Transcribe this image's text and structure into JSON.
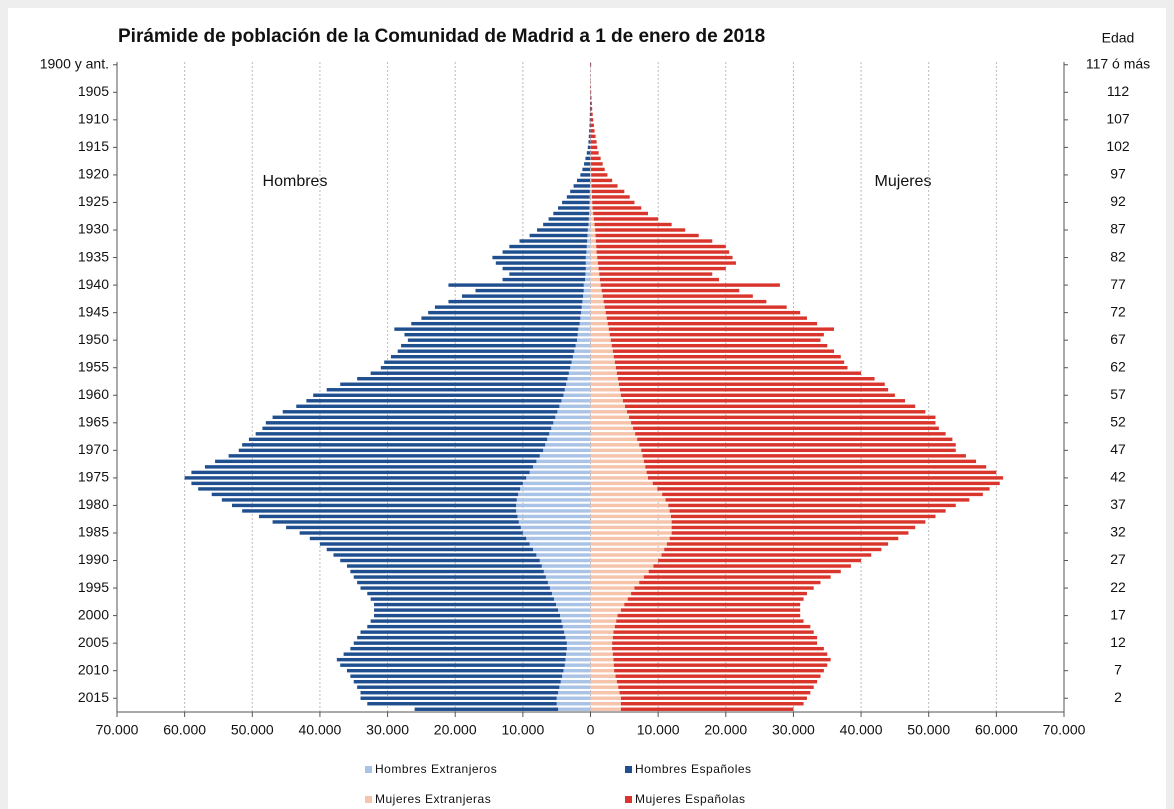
{
  "chart_data": {
    "type": "population_pyramid",
    "title": "Pirámide de población de la Comunidad de Madrid a 1 de enero de 2018",
    "right_axis_title": "Edad",
    "annotations": [
      "Hombres",
      "Mujeres"
    ],
    "categories": [
      "1900 y ant.",
      null,
      null,
      null,
      null,
      "1905",
      null,
      null,
      null,
      null,
      "1910",
      null,
      null,
      null,
      null,
      "1915",
      null,
      null,
      null,
      null,
      "1920",
      null,
      null,
      null,
      null,
      "1925",
      null,
      null,
      null,
      null,
      "1930",
      null,
      null,
      null,
      null,
      "1935",
      null,
      null,
      null,
      null,
      "1940",
      null,
      null,
      null,
      null,
      "1945",
      null,
      null,
      null,
      null,
      "1950",
      null,
      null,
      null,
      null,
      "1955",
      null,
      null,
      null,
      null,
      "1960",
      null,
      null,
      null,
      null,
      "1965",
      null,
      null,
      null,
      null,
      "1970",
      null,
      null,
      null,
      null,
      "1975",
      null,
      null,
      null,
      null,
      "1980",
      null,
      null,
      null,
      null,
      "1985",
      null,
      null,
      null,
      null,
      "1990",
      null,
      null,
      null,
      null,
      "1995",
      null,
      null,
      null,
      null,
      "2000",
      null,
      null,
      null,
      null,
      "2005",
      null,
      null,
      null,
      null,
      "2010",
      null,
      null,
      null,
      null,
      "2015",
      null,
      null
    ],
    "age_labels": [
      "117 ó más",
      null,
      null,
      null,
      null,
      "112",
      null,
      null,
      null,
      null,
      "107",
      null,
      null,
      null,
      null,
      "102",
      null,
      null,
      null,
      null,
      "97",
      null,
      null,
      null,
      null,
      "92",
      null,
      null,
      null,
      null,
      "87",
      null,
      null,
      null,
      null,
      "82",
      null,
      null,
      null,
      null,
      "77",
      null,
      null,
      null,
      null,
      "72",
      null,
      null,
      null,
      null,
      "67",
      null,
      null,
      null,
      null,
      "62",
      null,
      null,
      null,
      null,
      "57",
      null,
      null,
      null,
      null,
      "52",
      null,
      null,
      null,
      null,
      "47",
      null,
      null,
      null,
      null,
      "42",
      null,
      null,
      null,
      null,
      "37",
      null,
      null,
      null,
      null,
      "32",
      null,
      null,
      null,
      null,
      "27",
      null,
      null,
      null,
      null,
      "22",
      null,
      null,
      null,
      null,
      "17",
      null,
      null,
      null,
      null,
      "12",
      null,
      null,
      null,
      null,
      "7",
      null,
      null,
      null,
      null,
      "2",
      null,
      null
    ],
    "xlim": [
      -70000,
      70000
    ],
    "xticks": [
      {
        "value": -70000,
        "label": "70.000"
      },
      {
        "value": -60000,
        "label": "60.000"
      },
      {
        "value": -50000,
        "label": "50.000"
      },
      {
        "value": -40000,
        "label": "40.000"
      },
      {
        "value": -30000,
        "label": "30.000"
      },
      {
        "value": -20000,
        "label": "20.000"
      },
      {
        "value": -10000,
        "label": "10.000"
      },
      0,
      {
        "value": 10000,
        "label": "10.000"
      },
      {
        "value": 20000,
        "label": "20.000"
      },
      {
        "value": 30000,
        "label": "30.000"
      },
      {
        "value": 40000,
        "label": "40.000"
      },
      {
        "value": 50000,
        "label": "50.000"
      },
      {
        "value": 60000,
        "label": "60.000"
      },
      {
        "value": 70000,
        "label": "70.000"
      }
    ],
    "grid": true,
    "series": [
      {
        "name": "Hombres Extranjeros",
        "color": "#a9c3e6",
        "side": "left",
        "values": [
          0,
          0,
          0,
          0,
          0,
          0,
          0,
          0,
          0,
          0,
          10,
          10,
          10,
          20,
          20,
          20,
          30,
          30,
          40,
          50,
          60,
          70,
          80,
          100,
          120,
          140,
          160,
          200,
          250,
          300,
          400,
          450,
          500,
          550,
          600,
          700,
          700,
          700,
          750,
          800,
          1000,
          1000,
          1100,
          1200,
          1300,
          1400,
          1500,
          1600,
          1800,
          1900,
          2000,
          2200,
          2400,
          2600,
          2800,
          3000,
          3200,
          3400,
          3600,
          3800,
          4000,
          4300,
          4600,
          4900,
          5200,
          5500,
          5800,
          6100,
          6400,
          6700,
          7000,
          7500,
          8000,
          8500,
          9000,
          9500,
          10000,
          10400,
          10700,
          10900,
          11000,
          11000,
          10800,
          10600,
          10300,
          10000,
          9500,
          9000,
          8500,
          8000,
          7500,
          7200,
          6900,
          6600,
          6300,
          6000,
          5700,
          5400,
          5100,
          4800,
          4500,
          4300,
          4100,
          3900,
          3700,
          3500,
          3500,
          3600,
          3700,
          3800,
          4000,
          4200,
          4400,
          4600,
          4800,
          5000,
          5000,
          4800
        ]
      },
      {
        "name": "Hombres Españoles",
        "color": "#1f4f8f",
        "side": "left",
        "values": [
          50,
          10,
          10,
          20,
          20,
          30,
          40,
          60,
          80,
          100,
          110,
          140,
          190,
          230,
          280,
          380,
          520,
          720,
          910,
          1150,
          1440,
          1930,
          2420,
          2900,
          3380,
          4060,
          4640,
          5300,
          5950,
          6700,
          7500,
          8550,
          10000,
          11450,
          12400,
          13800,
          13300,
          12300,
          11250,
          12200,
          20000,
          16000,
          17900,
          19800,
          21700,
          22600,
          23500,
          24900,
          27200,
          25600,
          25000,
          25800,
          26100,
          26900,
          27700,
          28000,
          29300,
          31100,
          33400,
          35200,
          37000,
          37700,
          38900,
          40600,
          41800,
          42500,
          42700,
          43400,
          44100,
          44800,
          45000,
          46000,
          47500,
          48500,
          50000,
          50500,
          49000,
          47600,
          45300,
          43600,
          42000,
          40500,
          38200,
          36400,
          34700,
          33000,
          32000,
          31000,
          30500,
          30000,
          29500,
          28800,
          28600,
          28400,
          28200,
          28000,
          27300,
          27100,
          26900,
          27200,
          27500,
          28200,
          28900,
          30100,
          30800,
          31500,
          32000,
          32900,
          33800,
          33200,
          32000,
          31300,
          30600,
          29900,
          29200,
          29000,
          28000,
          21200
        ]
      },
      {
        "name": "Mujeres Extranjeras",
        "color": "#f6c3ab",
        "side": "right",
        "values": [
          0,
          0,
          0,
          0,
          0,
          0,
          0,
          0,
          0,
          0,
          10,
          10,
          20,
          20,
          30,
          40,
          50,
          60,
          70,
          80,
          100,
          120,
          150,
          180,
          220,
          260,
          300,
          400,
          500,
          600,
          700,
          750,
          800,
          850,
          900,
          1000,
          1100,
          1200,
          1300,
          1400,
          1500,
          1650,
          1800,
          1950,
          2100,
          2250,
          2400,
          2550,
          2700,
          2850,
          3000,
          3150,
          3300,
          3450,
          3600,
          3750,
          3900,
          4050,
          4200,
          4350,
          4500,
          4800,
          5100,
          5400,
          5700,
          6000,
          6300,
          6600,
          6900,
          7200,
          7500,
          7700,
          7900,
          8100,
          8300,
          8500,
          9200,
          9900,
          10600,
          11100,
          11500,
          11700,
          11900,
          12000,
          12000,
          12000,
          11700,
          11300,
          10900,
          10500,
          10000,
          9300,
          8600,
          7900,
          7200,
          6500,
          6000,
          5500,
          5000,
          4500,
          4000,
          3800,
          3600,
          3400,
          3300,
          3200,
          3200,
          3300,
          3400,
          3450,
          3500,
          3700,
          3900,
          4100,
          4300,
          4500,
          4500,
          4500
        ]
      },
      {
        "name": "Mujeres Españolas",
        "color": "#d9352c",
        "side": "right",
        "values": [
          100,
          20,
          30,
          40,
          60,
          100,
          150,
          200,
          250,
          320,
          390,
          490,
          580,
          730,
          870,
          960,
          1150,
          1440,
          1730,
          2020,
          2400,
          3080,
          3850,
          4820,
          5580,
          6240,
          7200,
          8100,
          9500,
          11400,
          13300,
          15250,
          17200,
          19150,
          19600,
          20000,
          20400,
          18800,
          16700,
          17600,
          26500,
          20350,
          22200,
          24050,
          26900,
          28750,
          29600,
          30950,
          33300,
          31650,
          31000,
          31850,
          32700,
          33550,
          33900,
          34250,
          36100,
          37950,
          39300,
          39650,
          40500,
          41700,
          42900,
          44100,
          45300,
          45000,
          45200,
          45900,
          46600,
          46800,
          46500,
          47800,
          49100,
          50400,
          51700,
          52500,
          51300,
          49100,
          47400,
          44900,
          42500,
          40800,
          39100,
          37500,
          36000,
          35000,
          33800,
          32700,
          32100,
          31000,
          30000,
          29200,
          28400,
          27600,
          26800,
          26500,
          26000,
          26000,
          26000,
          26500,
          27000,
          27700,
          28900,
          29600,
          30200,
          30300,
          31300,
          31700,
          32100,
          31550,
          31000,
          30300,
          29600,
          28900,
          28200,
          27500,
          27000,
          25500
        ]
      }
    ]
  }
}
